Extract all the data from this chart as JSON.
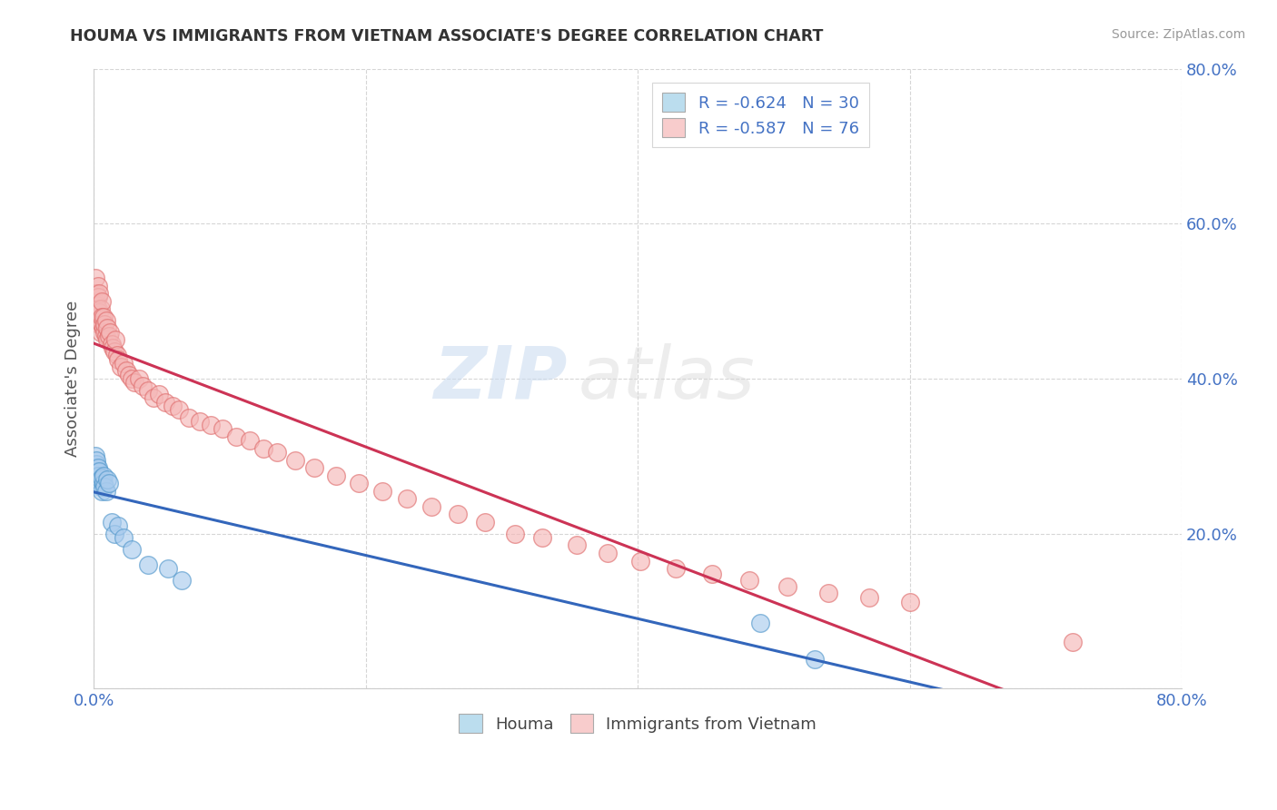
{
  "title": "HOUMA VS IMMIGRANTS FROM VIETNAM ASSOCIATE'S DEGREE CORRELATION CHART",
  "source": "Source: ZipAtlas.com",
  "ylabel": "Associate's Degree",
  "watermark_zip": "ZIP",
  "watermark_atlas": "atlas",
  "x_min": 0.0,
  "x_max": 0.8,
  "y_min": 0.0,
  "y_max": 0.8,
  "x_tick_positions": [
    0.0,
    0.2,
    0.4,
    0.6,
    0.8
  ],
  "x_tick_labels": [
    "0.0%",
    "",
    "",
    "",
    "80.0%"
  ],
  "y_tick_positions": [
    0.0,
    0.2,
    0.4,
    0.6,
    0.8
  ],
  "y_tick_labels_right": [
    "",
    "20.0%",
    "40.0%",
    "60.0%",
    "80.0%"
  ],
  "houma_R": -0.624,
  "houma_N": 30,
  "vietnam_R": -0.587,
  "vietnam_N": 76,
  "houma_dot_face": "#aaccee",
  "houma_dot_edge": "#5599cc",
  "vietnam_dot_face": "#f5b8b8",
  "vietnam_dot_edge": "#e07070",
  "line_houma_color": "#3366bb",
  "line_vietnam_color": "#cc3355",
  "legend_box_houma": "#bbddee",
  "legend_box_vietnam": "#f8cccc",
  "background_color": "#ffffff",
  "grid_color": "#bbbbbb",
  "tick_color": "#4472c4",
  "houma_x": [
    0.001,
    0.001,
    0.002,
    0.002,
    0.002,
    0.003,
    0.003,
    0.003,
    0.004,
    0.004,
    0.005,
    0.005,
    0.006,
    0.006,
    0.007,
    0.007,
    0.008,
    0.009,
    0.01,
    0.011,
    0.013,
    0.015,
    0.018,
    0.022,
    0.028,
    0.04,
    0.055,
    0.065,
    0.49,
    0.53
  ],
  "houma_y": [
    0.285,
    0.3,
    0.29,
    0.28,
    0.295,
    0.27,
    0.285,
    0.275,
    0.265,
    0.28,
    0.26,
    0.27,
    0.255,
    0.272,
    0.265,
    0.275,
    0.26,
    0.255,
    0.27,
    0.265,
    0.215,
    0.2,
    0.21,
    0.195,
    0.18,
    0.16,
    0.155,
    0.14,
    0.085,
    0.038
  ],
  "vietnam_x": [
    0.001,
    0.001,
    0.002,
    0.002,
    0.002,
    0.003,
    0.003,
    0.003,
    0.004,
    0.004,
    0.004,
    0.005,
    0.005,
    0.006,
    0.006,
    0.006,
    0.007,
    0.007,
    0.008,
    0.008,
    0.009,
    0.009,
    0.01,
    0.01,
    0.011,
    0.012,
    0.013,
    0.014,
    0.015,
    0.016,
    0.017,
    0.018,
    0.02,
    0.022,
    0.024,
    0.026,
    0.028,
    0.03,
    0.033,
    0.036,
    0.04,
    0.044,
    0.048,
    0.053,
    0.058,
    0.063,
    0.07,
    0.078,
    0.086,
    0.095,
    0.105,
    0.115,
    0.125,
    0.135,
    0.148,
    0.162,
    0.178,
    0.195,
    0.212,
    0.23,
    0.248,
    0.268,
    0.288,
    0.31,
    0.33,
    0.355,
    0.378,
    0.402,
    0.428,
    0.455,
    0.482,
    0.51,
    0.54,
    0.57,
    0.6,
    0.72
  ],
  "vietnam_y": [
    0.5,
    0.53,
    0.48,
    0.51,
    0.495,
    0.52,
    0.505,
    0.49,
    0.47,
    0.51,
    0.485,
    0.49,
    0.46,
    0.5,
    0.47,
    0.48,
    0.465,
    0.48,
    0.46,
    0.47,
    0.455,
    0.475,
    0.45,
    0.465,
    0.455,
    0.46,
    0.445,
    0.44,
    0.435,
    0.45,
    0.43,
    0.425,
    0.415,
    0.42,
    0.41,
    0.405,
    0.4,
    0.395,
    0.4,
    0.39,
    0.385,
    0.375,
    0.38,
    0.37,
    0.365,
    0.36,
    0.35,
    0.345,
    0.34,
    0.335,
    0.325,
    0.32,
    0.31,
    0.305,
    0.295,
    0.285,
    0.275,
    0.265,
    0.255,
    0.245,
    0.235,
    0.225,
    0.215,
    0.2,
    0.195,
    0.185,
    0.175,
    0.165,
    0.155,
    0.148,
    0.14,
    0.132,
    0.124,
    0.118,
    0.112,
    0.06
  ]
}
